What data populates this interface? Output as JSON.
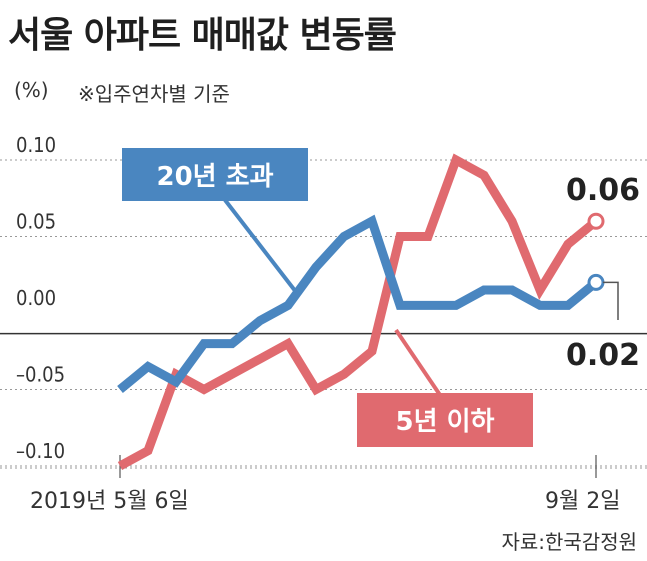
{
  "header": {
    "title": "서울 아파트 매매값 변동률",
    "unit": "(%)",
    "note": "※입주연차별 기준"
  },
  "footer": {
    "source": "자료:한국감정원"
  },
  "colors": {
    "blue": "#4a86c0",
    "red": "#e06a6f",
    "grid": "#999999",
    "zero_line": "#333333"
  },
  "chart_data": {
    "type": "line",
    "title": "서울 아파트 매매값 변동률",
    "ylabel": "(%)",
    "xlabel": "",
    "ylim": [
      -0.11,
      0.11
    ],
    "ytick_labels": [
      "0.10",
      "0.05",
      "0.00",
      "–0.05",
      "–0.10"
    ],
    "ytick_values": [
      0.1,
      0.05,
      0.0,
      -0.05,
      -0.1
    ],
    "x_labels": [
      "2019년 5월 6일",
      "9월 2일"
    ],
    "x_count": 18,
    "grid": true,
    "series": [
      {
        "name": "20년 초과",
        "color": "#4a86c0",
        "values": [
          -0.05,
          -0.035,
          -0.045,
          -0.02,
          -0.02,
          -0.005,
          0.005,
          0.03,
          0.05,
          0.06,
          0.005,
          0.005,
          0.005,
          0.015,
          0.015,
          0.005,
          0.005,
          0.02
        ],
        "end_label": "0.02"
      },
      {
        "name": "5년 이하",
        "color": "#e06a6f",
        "values": [
          -0.1,
          -0.09,
          -0.04,
          -0.05,
          -0.04,
          -0.03,
          -0.02,
          -0.05,
          -0.04,
          -0.025,
          0.05,
          0.05,
          0.1,
          0.09,
          0.06,
          0.015,
          0.045,
          0.06
        ],
        "end_label": "0.06"
      }
    ]
  }
}
